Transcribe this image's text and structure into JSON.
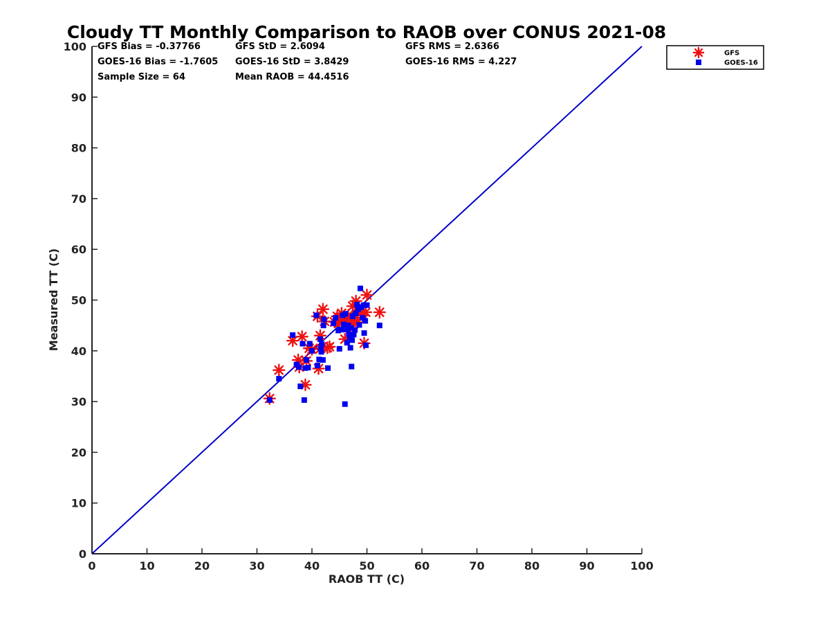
{
  "chart_data": {
    "type": "scatter",
    "title": "Cloudy TT Monthly Comparison to RAOB over CONUS 2021-08",
    "xlabel": "RAOB TT (C)",
    "ylabel": "Measured TT (C)",
    "xlim": [
      0,
      100
    ],
    "ylim": [
      0,
      100
    ],
    "xticks": [
      "0",
      "10",
      "20",
      "30",
      "40",
      "50",
      "60",
      "70",
      "80",
      "90",
      "100"
    ],
    "yticks": [
      "0",
      "10",
      "20",
      "30",
      "40",
      "50",
      "60",
      "70",
      "80",
      "90",
      "100"
    ],
    "grid": false,
    "legend_position": "outside-top-right",
    "reference_line": {
      "name": "1:1 line",
      "x": [
        0,
        100
      ],
      "y": [
        0,
        100
      ],
      "color": "#0000CC"
    },
    "stats": [
      [
        "GFS Bias = -0.37766",
        "GFS StD = 2.6094",
        "GFS RMS = 2.6366"
      ],
      [
        "GOES-16 Bias = -1.7605",
        "GOES-16 StD = 3.8429",
        "GOES-16 RMS = 4.227"
      ],
      [
        "Sample Size = 64",
        "Mean RAOB = 44.4516"
      ]
    ],
    "series": [
      {
        "name": "GFS",
        "marker": "asterisk",
        "color": "#EE1111",
        "points": [
          [
            32.3,
            30.6
          ],
          [
            34.0,
            36.2
          ],
          [
            36.5,
            42.0
          ],
          [
            37.5,
            38.2
          ],
          [
            37.7,
            36.8
          ],
          [
            38.2,
            42.8
          ],
          [
            38.8,
            33.3
          ],
          [
            39.0,
            38.0
          ],
          [
            39.5,
            40.5
          ],
          [
            40.0,
            40.3
          ],
          [
            41.0,
            46.8
          ],
          [
            41.2,
            36.5
          ],
          [
            41.5,
            43.0
          ],
          [
            41.6,
            40.5
          ],
          [
            42.0,
            48.2
          ],
          [
            42.3,
            45.8
          ],
          [
            42.8,
            40.6
          ],
          [
            43.2,
            40.8
          ],
          [
            44.1,
            45.7
          ],
          [
            44.6,
            46.8
          ],
          [
            45.0,
            45.5
          ],
          [
            45.4,
            47.4
          ],
          [
            45.8,
            46.0
          ],
          [
            46.0,
            42.3
          ],
          [
            46.1,
            45.6
          ],
          [
            46.4,
            44.5
          ],
          [
            46.6,
            47.0
          ],
          [
            47.0,
            45.2
          ],
          [
            47.2,
            45.6
          ],
          [
            47.4,
            48.8
          ],
          [
            47.7,
            46.5
          ],
          [
            48.0,
            49.8
          ],
          [
            48.3,
            45.6
          ],
          [
            48.5,
            48.0
          ],
          [
            48.8,
            47.4
          ],
          [
            49.2,
            47.0
          ],
          [
            49.5,
            41.5
          ],
          [
            49.8,
            47.6
          ],
          [
            50.0,
            51.0
          ],
          [
            52.3,
            47.6
          ]
        ]
      },
      {
        "name": "GOES-16",
        "marker": "square",
        "color": "#0000EE",
        "points": [
          [
            32.3,
            30.3
          ],
          [
            34.0,
            34.5
          ],
          [
            36.5,
            43.1
          ],
          [
            37.2,
            37.3
          ],
          [
            37.6,
            36.8
          ],
          [
            37.9,
            33.0
          ],
          [
            38.3,
            41.4
          ],
          [
            38.6,
            30.3
          ],
          [
            38.8,
            36.6
          ],
          [
            39.0,
            38.2
          ],
          [
            39.3,
            36.7
          ],
          [
            39.6,
            41.4
          ],
          [
            40.0,
            40.0
          ],
          [
            40.8,
            47.0
          ],
          [
            41.0,
            37.1
          ],
          [
            41.3,
            38.3
          ],
          [
            41.5,
            42.3
          ],
          [
            41.6,
            40.4
          ],
          [
            41.7,
            39.8
          ],
          [
            41.8,
            41.3
          ],
          [
            42.0,
            38.2
          ],
          [
            42.1,
            45.0
          ],
          [
            42.2,
            46.2
          ],
          [
            42.9,
            36.6
          ],
          [
            43.9,
            45.4
          ],
          [
            44.3,
            46.5
          ],
          [
            44.8,
            44.0
          ],
          [
            45.0,
            40.4
          ],
          [
            45.3,
            44.2
          ],
          [
            45.6,
            47.0
          ],
          [
            45.8,
            45.2
          ],
          [
            46.0,
            29.5
          ],
          [
            46.1,
            47.3
          ],
          [
            46.3,
            44.2
          ],
          [
            46.4,
            41.6
          ],
          [
            46.6,
            45.0
          ],
          [
            46.7,
            43.3
          ],
          [
            46.9,
            42.7
          ],
          [
            47.0,
            40.6
          ],
          [
            47.1,
            44.5
          ],
          [
            47.2,
            36.9
          ],
          [
            47.3,
            42.1
          ],
          [
            47.4,
            46.8
          ],
          [
            47.6,
            43.2
          ],
          [
            47.8,
            44.1
          ],
          [
            48.0,
            47.4
          ],
          [
            48.2,
            49.1
          ],
          [
            48.4,
            48.2
          ],
          [
            48.6,
            45.1
          ],
          [
            48.8,
            52.3
          ],
          [
            49.0,
            48.6
          ],
          [
            49.2,
            46.5
          ],
          [
            49.4,
            49.0
          ],
          [
            49.5,
            43.5
          ],
          [
            49.7,
            45.9
          ],
          [
            49.8,
            41.1
          ],
          [
            50.0,
            49.0
          ],
          [
            52.3,
            45.0
          ]
        ]
      }
    ]
  }
}
